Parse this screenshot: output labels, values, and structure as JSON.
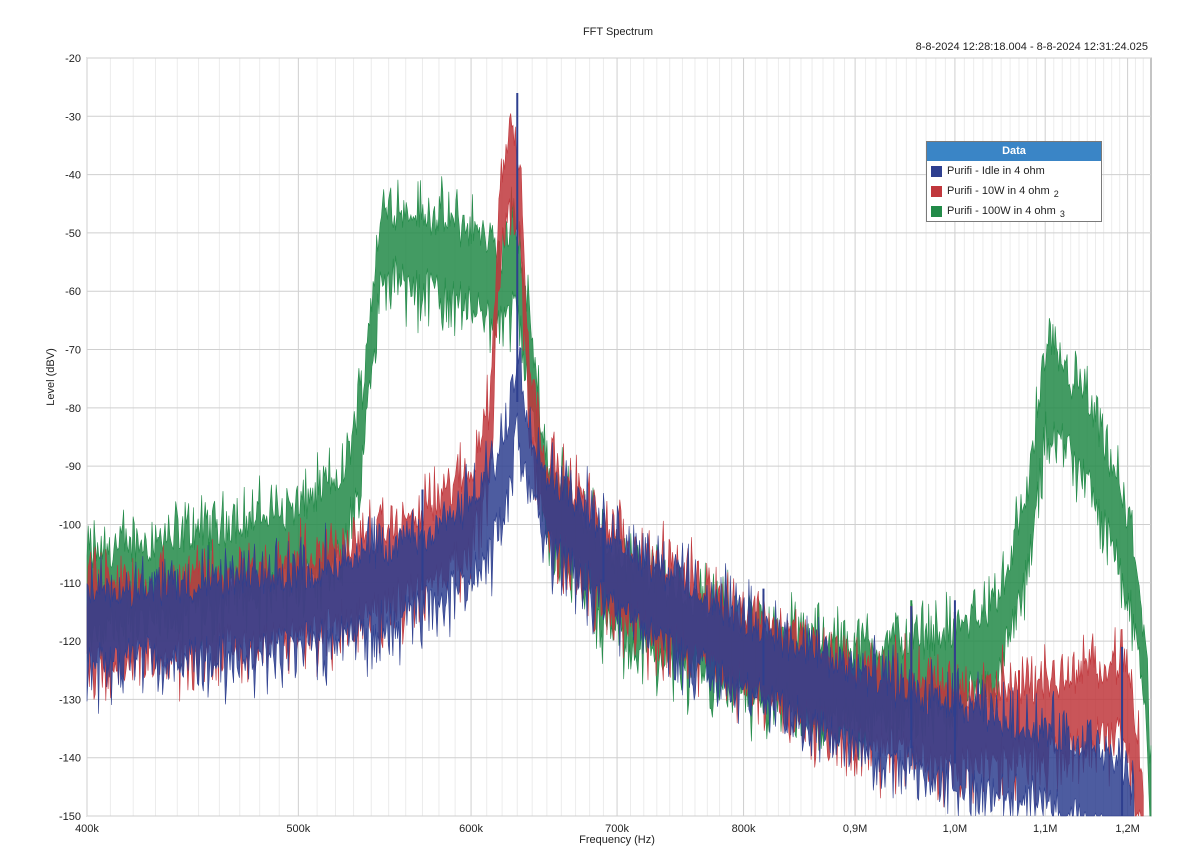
{
  "chart_data": {
    "type": "line",
    "title": "FFT Spectrum",
    "timestamp": "8-8-2024 12:28:18.004 - 8-8-2024 12:31:24.025",
    "xlabel": "Frequency (Hz)",
    "ylabel": "Level (dBV)",
    "x_scale": "log",
    "xlim": [
      400000,
      1230000
    ],
    "ylim": [
      -150,
      -20
    ],
    "x_ticks": [
      {
        "value": 400000,
        "label": "400k"
      },
      {
        "value": 500000,
        "label": "500k"
      },
      {
        "value": 600000,
        "label": "600k"
      },
      {
        "value": 700000,
        "label": "700k"
      },
      {
        "value": 800000,
        "label": "800k"
      },
      {
        "value": 900000,
        "label": "0,9M"
      },
      {
        "value": 1000000,
        "label": "1,0M"
      },
      {
        "value": 1100000,
        "label": "1,1M"
      },
      {
        "value": 1200000,
        "label": "1,2M"
      }
    ],
    "y_ticks": [
      -20,
      -30,
      -40,
      -50,
      -60,
      -70,
      -80,
      -90,
      -100,
      -110,
      -120,
      -130,
      -140,
      -150
    ],
    "grid": true,
    "legend_title": "Data",
    "legend_position": "top-right",
    "series": [
      {
        "name": "Purifi - Idle in 4 ohm",
        "index": "",
        "color": "#2e3f8f",
        "envelope": [
          [
            400000,
            -117
          ],
          [
            450000,
            -116
          ],
          [
            500000,
            -114
          ],
          [
            550000,
            -110
          ],
          [
            580000,
            -106
          ],
          [
            600000,
            -102
          ],
          [
            615000,
            -96
          ],
          [
            625000,
            -87
          ],
          [
            630000,
            -75
          ],
          [
            635000,
            -85
          ],
          [
            650000,
            -97
          ],
          [
            700000,
            -108
          ],
          [
            800000,
            -122
          ],
          [
            900000,
            -131
          ],
          [
            1000000,
            -137
          ],
          [
            1100000,
            -141
          ],
          [
            1150000,
            -144
          ],
          [
            1200000,
            -148
          ],
          [
            1208000,
            -150
          ]
        ],
        "spurs": [
          [
            570000,
            -94
          ],
          [
            630000,
            -26
          ],
          [
            690000,
            -98
          ],
          [
            817000,
            -111
          ],
          [
            955000,
            -114
          ],
          [
            1000000,
            -113
          ],
          [
            1193000,
            -121
          ]
        ]
      },
      {
        "name": "Purifi - 10W in 4 ohm",
        "index": "2",
        "color": "#c0373c",
        "envelope": [
          [
            400000,
            -117
          ],
          [
            450000,
            -115
          ],
          [
            500000,
            -112
          ],
          [
            550000,
            -107
          ],
          [
            580000,
            -102
          ],
          [
            600000,
            -96
          ],
          [
            612000,
            -85
          ],
          [
            618000,
            -50
          ],
          [
            625000,
            -38
          ],
          [
            632000,
            -44
          ],
          [
            638000,
            -78
          ],
          [
            650000,
            -95
          ],
          [
            700000,
            -108
          ],
          [
            800000,
            -121
          ],
          [
            900000,
            -130
          ],
          [
            1000000,
            -134
          ],
          [
            1100000,
            -133
          ],
          [
            1150000,
            -131
          ],
          [
            1190000,
            -129
          ],
          [
            1200000,
            -131
          ],
          [
            1220000,
            -150
          ]
        ],
        "spurs": [
          [
            570000,
            -100
          ],
          [
            817000,
            -112
          ],
          [
            955000,
            -114
          ],
          [
            1000000,
            -115
          ],
          [
            1070000,
            -125
          ],
          [
            1193000,
            -121
          ]
        ]
      },
      {
        "name": "Purifi - 100W in 4 ohm",
        "index": "3",
        "color": "#228a48",
        "envelope": [
          [
            400000,
            -111
          ],
          [
            450000,
            -107
          ],
          [
            500000,
            -103
          ],
          [
            525000,
            -97
          ],
          [
            535000,
            -82
          ],
          [
            545000,
            -54
          ],
          [
            552000,
            -51
          ],
          [
            560000,
            -52
          ],
          [
            600000,
            -55
          ],
          [
            610000,
            -57
          ],
          [
            620000,
            -60
          ],
          [
            628000,
            -53
          ],
          [
            635000,
            -65
          ],
          [
            650000,
            -95
          ],
          [
            700000,
            -112
          ],
          [
            800000,
            -122
          ],
          [
            850000,
            -125
          ],
          [
            900000,
            -127
          ],
          [
            1000000,
            -124
          ],
          [
            1050000,
            -118
          ],
          [
            1080000,
            -100
          ],
          [
            1100000,
            -76
          ],
          [
            1120000,
            -79
          ],
          [
            1150000,
            -85
          ],
          [
            1190000,
            -100
          ],
          [
            1210000,
            -110
          ],
          [
            1225000,
            -130
          ],
          [
            1230000,
            -150
          ]
        ],
        "spurs": [
          [
            455000,
            -103
          ],
          [
            817000,
            -120
          ],
          [
            955000,
            -113
          ],
          [
            1000000,
            -115
          ]
        ]
      }
    ]
  }
}
